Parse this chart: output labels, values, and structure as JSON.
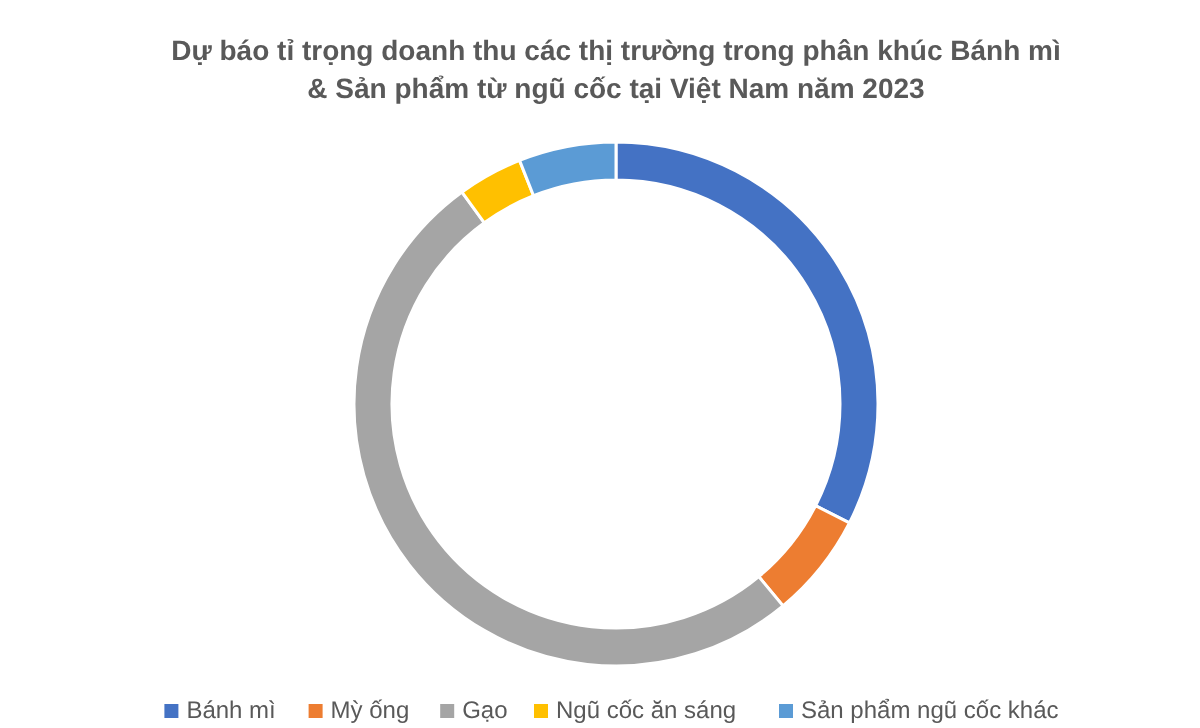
{
  "chart_data": {
    "type": "donut",
    "title": "Dự báo tỉ trọng doanh thu các thị trường trong phân khúc Bánh mì & Sản phẩm từ ngũ cốc tại Việt Nam năm 2023",
    "categories": [
      "Bánh mì",
      "Mỳ ống",
      "Gạo",
      "Ngũ cốc ăn sáng",
      "Sản phẩm ngũ cốc khác"
    ],
    "values": [
      32.5,
      6.5,
      51,
      4,
      6
    ],
    "colors": [
      "#4472c4",
      "#ed7d31",
      "#a5a5a5",
      "#ffc000",
      "#5b9bd5"
    ],
    "legend": "bottom"
  }
}
